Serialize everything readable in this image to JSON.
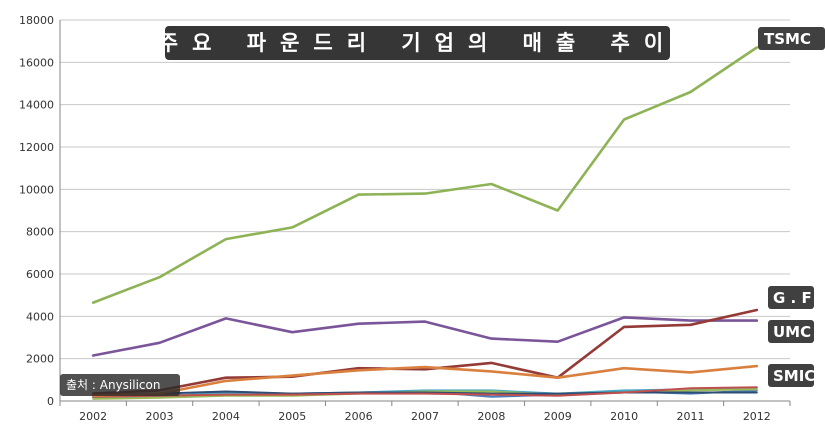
{
  "chart_data": {
    "type": "line",
    "title": "주요 파운드리 기업의 매출 추이",
    "source": "출처 : Anysilicon",
    "xlabel": "",
    "ylabel": "",
    "x": [
      "2002",
      "2003",
      "2004",
      "2005",
      "2006",
      "2007",
      "2008",
      "2009",
      "2010",
      "2011",
      "2012"
    ],
    "ylim": [
      0,
      18000
    ],
    "yticks": [
      0,
      2000,
      4000,
      6000,
      8000,
      10000,
      12000,
      14000,
      16000,
      18000
    ],
    "grid": true,
    "series": [
      {
        "name": "TSMC",
        "color": "#8db356",
        "labeled": true,
        "values": [
          4650,
          5850,
          7650,
          8200,
          9750,
          9800,
          10250,
          9000,
          13300,
          14600,
          16700
        ]
      },
      {
        "name": "UMC",
        "color": "#7a559a",
        "labeled": true,
        "values": [
          2150,
          2750,
          3900,
          3250,
          3650,
          3750,
          2950,
          2800,
          3950,
          3800,
          3800
        ]
      },
      {
        "name": "G . F",
        "color": "#943b38",
        "labeled": true,
        "values": [
          350,
          500,
          1100,
          1150,
          1550,
          1500,
          1800,
          1100,
          3500,
          3600,
          4300
        ]
      },
      {
        "name": "SMIC",
        "color": "#d9803e",
        "labeled": true,
        "values": [
          250,
          350,
          950,
          1200,
          1450,
          1600,
          1400,
          1100,
          1550,
          1350,
          1650
        ]
      },
      {
        "name": "",
        "color": "#4a7ebb",
        "labeled": false,
        "values": [
          150,
          200,
          400,
          350,
          400,
          450,
          200,
          300,
          450,
          350,
          500
        ]
      },
      {
        "name": "",
        "color": "#4bacc6",
        "labeled": false,
        "values": [
          200,
          250,
          350,
          300,
          400,
          500,
          500,
          350,
          500,
          550,
          600
        ]
      },
      {
        "name": "",
        "color": "#9bbb59",
        "labeled": false,
        "values": [
          100,
          150,
          250,
          250,
          350,
          450,
          450,
          300,
          400,
          500,
          550
        ]
      },
      {
        "name": "",
        "color": "#2c4d75",
        "labeled": false,
        "values": [
          300,
          350,
          450,
          350,
          400,
          400,
          350,
          350,
          400,
          400,
          400
        ]
      },
      {
        "name": "",
        "color": "#c0504d",
        "labeled": false,
        "values": [
          200,
          250,
          300,
          300,
          350,
          350,
          300,
          250,
          400,
          600,
          650
        ]
      }
    ]
  }
}
